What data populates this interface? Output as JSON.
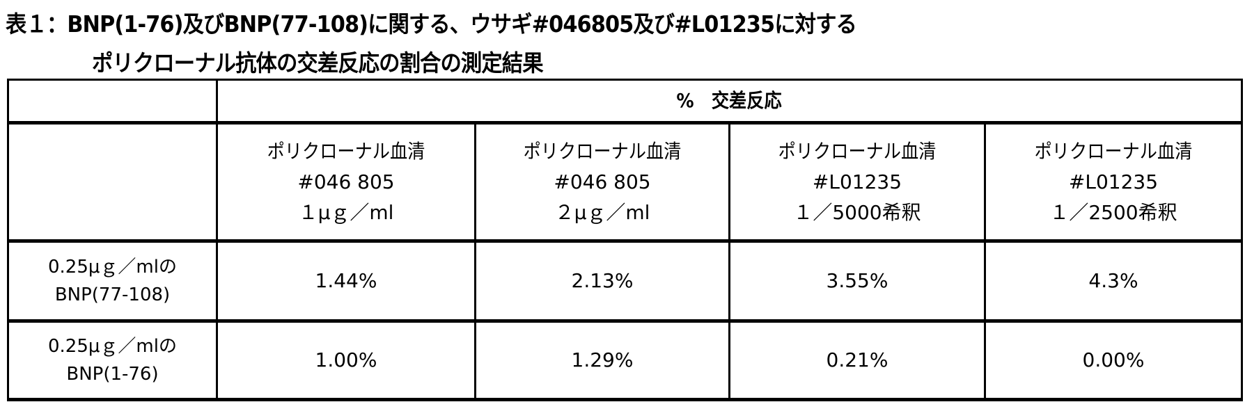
{
  "title": {
    "line1": "表１：BNP(1-76)及びBNP(77-108)に関する、ウサギ#046805及び#L01235に対する",
    "line2": "ポリクローナル抗体の交差反応の割合の測定結果"
  },
  "table": {
    "group_header": "%　交差反応",
    "columns": [
      {
        "line1": "ポリクローナル血清",
        "line2": "#046 805",
        "line3": "１μｇ／ml"
      },
      {
        "line1": "ポリクローナル血清",
        "line2": "#046 805",
        "line3": "２μｇ／ml"
      },
      {
        "line1": "ポリクローナル血清",
        "line2": "#L01235",
        "line3": "１／5000希釈"
      },
      {
        "line1": "ポリクローナル血清",
        "line2": "#L01235",
        "line3": "１／2500希釈"
      }
    ],
    "rows": [
      {
        "label_line1": "0.25μｇ／mlの",
        "label_line2": "BNP(77-108)",
        "values": [
          "1.44%",
          "2.13%",
          "3.55%",
          "4.3%"
        ]
      },
      {
        "label_line1": "0.25μｇ／mlの",
        "label_line2": "BNP(1-76)",
        "values": [
          "1.00%",
          "1.29%",
          "0.21%",
          "0.00%"
        ]
      }
    ]
  }
}
